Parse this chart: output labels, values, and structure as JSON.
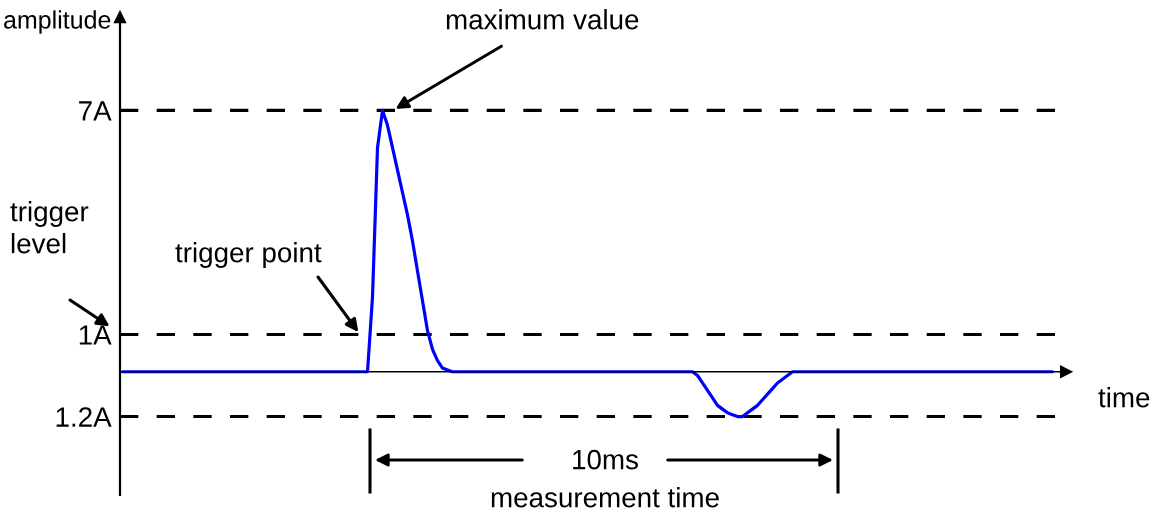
{
  "chart_data": {
    "type": "line",
    "xlabel": "time",
    "ylabel": "amplitude",
    "categories": [
      null,
      null,
      null,
      null,
      null,
      null,
      null,
      null,
      null,
      null,
      null,
      null,
      null,
      null,
      null,
      null,
      null,
      null,
      null,
      null,
      null,
      null,
      null,
      null,
      null,
      null,
      null,
      null,
      null,
      null,
      null,
      null,
      null,
      null,
      null,
      null,
      null,
      null,
      null,
      null,
      null,
      null,
      null,
      null,
      null,
      null,
      null,
      null,
      null,
      null,
      null,
      null,
      null,
      null,
      null,
      null,
      null,
      null,
      null,
      null,
      null,
      null,
      null,
      null,
      null,
      null,
      null,
      null,
      null,
      null,
      null,
      null,
      null,
      null,
      null,
      null,
      null,
      null,
      null,
      null,
      null,
      null,
      null,
      null,
      null,
      null,
      null,
      null,
      null,
      null,
      null,
      null,
      null,
      null,
      null,
      null,
      null,
      null,
      null,
      null,
      null,
      null,
      null,
      null,
      null,
      null,
      null,
      null,
      null,
      null,
      null,
      null,
      null,
      null,
      null,
      null,
      null,
      null,
      null,
      null,
      null,
      null,
      null,
      null,
      null,
      null,
      null,
      null,
      null,
      null,
      null,
      null,
      null,
      null,
      null,
      null,
      null,
      null,
      null,
      null,
      null,
      null,
      null,
      null,
      null,
      null,
      null,
      null,
      null,
      null,
      null,
      null,
      null,
      null,
      null,
      null,
      null,
      null,
      null,
      null,
      null,
      null,
      null,
      null,
      null,
      null,
      null,
      null,
      null,
      null,
      null,
      null,
      null,
      null,
      null,
      null,
      null,
      null,
      null,
      null,
      null,
      null,
      null,
      null,
      null,
      null,
      null
    ],
    "series": [
      {
        "color": "#0000ff",
        "values": [
          0,
          0,
          0,
          0,
          0,
          0,
          0,
          0,
          0,
          0,
          0,
          0,
          0,
          0,
          0,
          0,
          0,
          0,
          0,
          0,
          0,
          0,
          0,
          0,
          0,
          0,
          0,
          0,
          0,
          0,
          0,
          0,
          0,
          0,
          0,
          0,
          0,
          0,
          0,
          0,
          0,
          0,
          0,
          0,
          0,
          0,
          0,
          0,
          0,
          0,
          2.0,
          6.0,
          7.0,
          6.6,
          6.0,
          5.4,
          4.8,
          4.2,
          3.5,
          2.7,
          1.9,
          1.1,
          0.6,
          0.3,
          0.1,
          0.05,
          0,
          0,
          0,
          0,
          0,
          0,
          0,
          0,
          0,
          0,
          0,
          0,
          0,
          0,
          0,
          0,
          0,
          0,
          0,
          0,
          0,
          0,
          0,
          0,
          0,
          0,
          0,
          0,
          0,
          0,
          0,
          0,
          0,
          0,
          0,
          0,
          0,
          0,
          0,
          0,
          0,
          0,
          0,
          0,
          0,
          0,
          0,
          0,
          0,
          -0.1,
          -0.3,
          -0.5,
          -0.7,
          -0.9,
          -1.0,
          -1.1,
          -1.15,
          -1.2,
          -1.2,
          -1.1,
          -1.0,
          -0.9,
          -0.75,
          -0.6,
          -0.45,
          -0.3,
          -0.2,
          -0.1,
          0,
          0,
          0,
          0,
          0,
          0,
          0,
          0,
          0,
          0,
          0,
          0,
          0,
          0,
          0,
          0,
          0,
          0,
          0,
          0,
          0,
          0,
          0,
          0,
          0,
          0,
          0,
          0,
          0,
          0,
          0,
          0,
          0,
          0,
          0,
          0,
          0,
          0,
          0,
          0,
          0,
          0,
          0,
          0,
          0,
          0,
          0,
          0,
          0,
          0,
          0,
          0,
          0
        ]
      }
    ],
    "ylim": [
      -3.3,
      9.5
    ],
    "yticks": [
      {
        "value": 7,
        "label": "7A"
      },
      {
        "value": 1,
        "label": "1A"
      },
      {
        "value": -1.2,
        "label": "1.2A"
      }
    ],
    "ref_lines": [
      {
        "axis": "y",
        "value": 7,
        "color": "#000000",
        "line_style": "dashed"
      },
      {
        "axis": "y",
        "value": 1,
        "color": "#000000",
        "line_style": "dashed"
      },
      {
        "axis": "y",
        "value": -1.2,
        "color": "#000000",
        "line_style": "dashed"
      }
    ],
    "annotations": [
      {
        "text": "maximum value",
        "y": 7
      },
      "trigger\nlevel",
      {
        "text": "trigger point",
        "y": 1
      },
      "10ms",
      "measurement time"
    ]
  }
}
